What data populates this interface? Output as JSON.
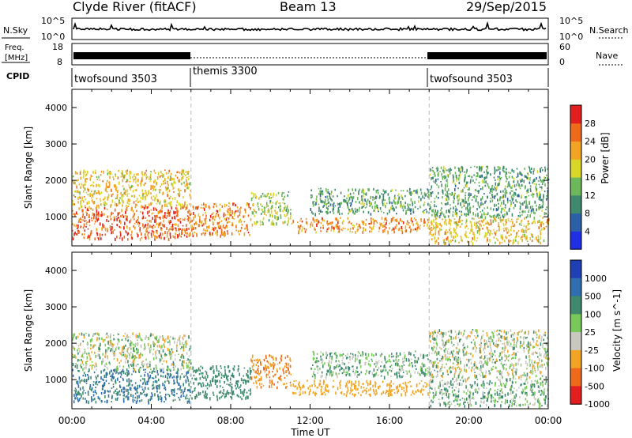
{
  "header": {
    "station": "Clyde River (fitACF)",
    "beam": "Beam 13",
    "date": "29/Sep/2015"
  },
  "noise_panel": {
    "left_label": "N.Sky",
    "right_label": "N.Search",
    "left_ticks": [
      "10^5",
      "10^0"
    ],
    "right_ticks": [
      "10^5",
      "10^0"
    ]
  },
  "freq_panel": {
    "left_label_top": "Freq.",
    "left_label_bottom": "[MHz]",
    "right_label": "Nave",
    "left_ticks": [
      "18",
      "8"
    ],
    "right_ticks": [
      "60",
      "0"
    ]
  },
  "cpid": {
    "label": "CPID",
    "segments": [
      {
        "name": "twofsound 3503",
        "start_hour": 0
      },
      {
        "name": "themis 3300",
        "start_hour": 6
      },
      {
        "name": "twofsound 3503",
        "start_hour": 18
      }
    ]
  },
  "chart_data": [
    {
      "type": "heatmap",
      "title": "",
      "variable": "Power",
      "colorbar_label": "Power [dB]",
      "ylabel": "Slant Range [km]",
      "xlabel": "Time UT",
      "x_range_hours": [
        0,
        24
      ],
      "ylim": [
        200,
        4500
      ],
      "y_ticks": [
        1000,
        2000,
        3000,
        4000
      ],
      "colorbar_ticks": [
        4,
        8,
        12,
        16,
        20,
        24,
        28
      ],
      "colorbar_colors": [
        "#1f2fe6",
        "#2b5fa8",
        "#3f8a6e",
        "#6cb85a",
        "#d9d62a",
        "#f2a524",
        "#ef6a1a",
        "#e31e1e"
      ],
      "regions": [
        {
          "t": [
            0,
            6
          ],
          "range_km": [
            400,
            1300
          ],
          "power_db": 28
        },
        {
          "t": [
            0,
            6
          ],
          "range_km": [
            1300,
            2300
          ],
          "power_db": 22
        },
        {
          "t": [
            6,
            9
          ],
          "range_km": [
            500,
            1400
          ],
          "power_db": 26
        },
        {
          "t": [
            9,
            11
          ],
          "range_km": [
            800,
            1700
          ],
          "power_db": 18
        },
        {
          "t": [
            11,
            18
          ],
          "range_km": [
            600,
            1000
          ],
          "power_db": 26
        },
        {
          "t": [
            12,
            18
          ],
          "range_km": [
            1100,
            1800
          ],
          "power_db": 14
        },
        {
          "t": [
            18,
            24
          ],
          "range_km": [
            1000,
            2400
          ],
          "power_db": 14
        },
        {
          "t": [
            18,
            24
          ],
          "range_km": [
            300,
            1000
          ],
          "power_db": 22
        }
      ]
    },
    {
      "type": "heatmap",
      "title": "",
      "variable": "Velocity",
      "colorbar_label": "Velocity [m s^-1]",
      "ylabel": "Slant Range [km]",
      "xlabel": "Time UT",
      "x_range_hours": [
        0,
        24
      ],
      "ylim": [
        200,
        4500
      ],
      "y_ticks": [
        1000,
        2000,
        3000,
        4000
      ],
      "x_tick_labels": [
        "00:00",
        "04:00",
        "08:00",
        "12:00",
        "16:00",
        "20:00",
        "00:00"
      ],
      "colorbar_ticks": [
        "1000",
        "500",
        "100",
        "25",
        "-25",
        "-100",
        "-500",
        "-1000"
      ],
      "colorbar_colors": [
        "#1f3fb5",
        "#2f6fb0",
        "#3f8a6e",
        "#78c85a",
        "#c8c8c0",
        "#f2a524",
        "#ef6a1a",
        "#e31e1e"
      ],
      "regions": [
        {
          "t": [
            0,
            6
          ],
          "range_km": [
            400,
            1300
          ],
          "velocity_ms": 300
        },
        {
          "t": [
            0,
            6
          ],
          "range_km": [
            1300,
            2300
          ],
          "velocity_ms": 0
        },
        {
          "t": [
            6,
            9
          ],
          "range_km": [
            500,
            1400
          ],
          "velocity_ms": 200
        },
        {
          "t": [
            9,
            11
          ],
          "range_km": [
            800,
            1700
          ],
          "velocity_ms": -300
        },
        {
          "t": [
            11,
            18
          ],
          "range_km": [
            600,
            1000
          ],
          "velocity_ms": -200
        },
        {
          "t": [
            12,
            18
          ],
          "range_km": [
            1100,
            1800
          ],
          "velocity_ms": 50
        },
        {
          "t": [
            18,
            24
          ],
          "range_km": [
            1000,
            2400
          ],
          "velocity_ms": 0
        },
        {
          "t": [
            18,
            24
          ],
          "range_km": [
            300,
            1000
          ],
          "velocity_ms": 50
        }
      ]
    }
  ]
}
